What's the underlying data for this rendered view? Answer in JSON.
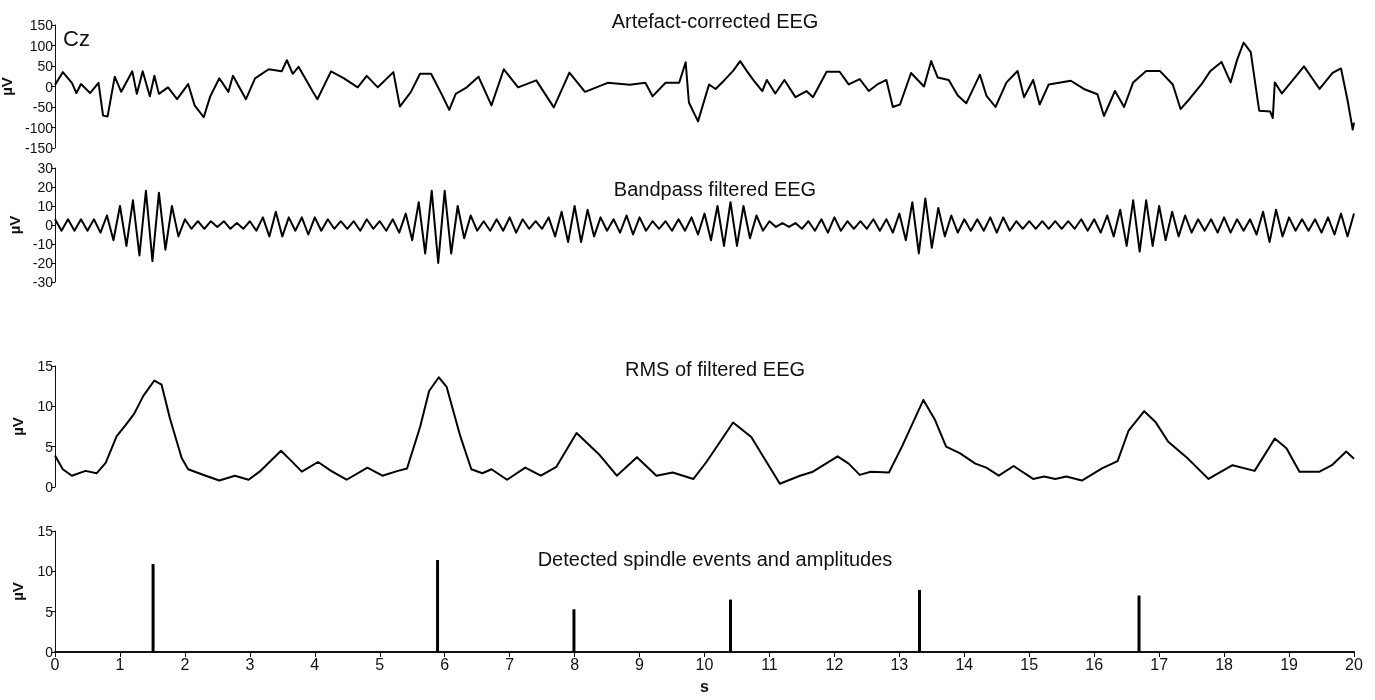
{
  "chart_data": [
    {
      "type": "line",
      "title": "Artefact-corrected EEG",
      "ylabel": "µV",
      "annotations": [
        "Cz"
      ],
      "xlim": [
        0,
        20
      ],
      "ylim": [
        -150,
        150
      ],
      "yticks": [
        -150,
        -100,
        -50,
        0,
        50,
        100,
        150
      ],
      "tick_labels": "y",
      "grid": false,
      "marker": "none",
      "line_style": "solid",
      "series": [
        {
          "color": "#000000",
          "x": [
            0,
            0.12,
            0.26,
            0.33,
            0.4,
            0.54,
            0.67,
            0.74,
            0.81,
            0.92,
            1.02,
            1.19,
            1.26,
            1.35,
            1.46,
            1.53,
            1.6,
            1.74,
            1.88,
            2.05,
            2.15,
            2.29,
            2.39,
            2.53,
            2.67,
            2.74,
            2.94,
            3.08,
            3.29,
            3.49,
            3.57,
            3.66,
            3.75,
            3.97,
            4.04,
            4.25,
            4.45,
            4.66,
            4.8,
            4.97,
            5.21,
            5.31,
            5.48,
            5.62,
            5.79,
            5.97,
            6.07,
            6.17,
            6.34,
            6.52,
            6.72,
            6.91,
            7.13,
            7.41,
            7.68,
            7.92,
            8.16,
            8.51,
            8.85,
            9.09,
            9.2,
            9.4,
            9.61,
            9.71,
            9.76,
            9.9,
            10.07,
            10.17,
            10.31,
            10.44,
            10.55,
            10.65,
            10.75,
            10.89,
            10.96,
            11.09,
            11.23,
            11.4,
            11.57,
            11.67,
            11.88,
            12.08,
            12.22,
            12.39,
            12.53,
            12.66,
            12.8,
            12.9,
            13.01,
            13.18,
            13.38,
            13.49,
            13.59,
            13.76,
            13.9,
            14.03,
            14.24,
            14.34,
            14.48,
            14.65,
            14.82,
            14.92,
            15.06,
            15.16,
            15.3,
            15.64,
            15.84,
            16.05,
            16.15,
            16.32,
            16.46,
            16.6,
            16.8,
            17.01,
            17.21,
            17.33,
            17.48,
            17.65,
            17.79,
            17.96,
            18.1,
            18.2,
            18.3,
            18.41,
            18.54,
            18.71,
            18.75,
            18.78,
            18.89,
            19.06,
            19.23,
            19.47,
            19.67,
            19.8,
            19.9,
            19.98,
            20
          ],
          "values": [
            4,
            35,
            9,
            -16,
            6,
            -16,
            9,
            -71,
            -73,
            24,
            -13,
            37,
            -18,
            37,
            -24,
            26,
            -18,
            -2,
            -31,
            6,
            -46,
            -75,
            -24,
            20,
            -13,
            26,
            -31,
            20,
            42,
            37,
            64,
            31,
            48,
            -13,
            -31,
            37,
            20,
            -2,
            26,
            -2,
            35,
            -49,
            -13,
            31,
            31,
            -24,
            -57,
            -18,
            -2,
            24,
            -46,
            42,
            -2,
            15,
            -51,
            34,
            -13,
            9,
            4,
            9,
            -24,
            9,
            9,
            59,
            -39,
            -85,
            5,
            -6,
            16,
            38,
            62,
            38,
            16,
            -11,
            16,
            -17,
            16,
            -26,
            -11,
            -26,
            36,
            36,
            5,
            18,
            -11,
            5,
            16,
            -50,
            -44,
            33,
            0,
            62,
            22,
            16,
            -22,
            -41,
            29,
            -22,
            -50,
            10,
            38,
            -26,
            16,
            -44,
            5,
            14,
            -6,
            -19,
            -72,
            -11,
            -50,
            10,
            38,
            38,
            5,
            -55,
            -28,
            5,
            38,
            60,
            10,
            65,
            107,
            84,
            -59,
            -61,
            -77,
            10,
            -17,
            16,
            49,
            -6,
            33,
            44,
            -33,
            -105,
            -88
          ]
        }
      ]
    },
    {
      "type": "line",
      "title": "Bandpass filtered EEG",
      "ylabel": "µV",
      "xlim": [
        0,
        20
      ],
      "ylim": [
        -30,
        30
      ],
      "yticks": [
        -30,
        -20,
        -10,
        0,
        10,
        20,
        30
      ],
      "tick_labels": "y",
      "grid": false,
      "marker": "none",
      "line_style": "solid",
      "series": [
        {
          "color": "#000000",
          "x": [
            0,
            0.1,
            0.2,
            0.3,
            0.4,
            0.5,
            0.6,
            0.7,
            0.8,
            0.9,
            1,
            1.1,
            1.2,
            1.3,
            1.4,
            1.5,
            1.6,
            1.7,
            1.8,
            1.9,
            2,
            2.1,
            2.2,
            2.3,
            2.4,
            2.5,
            2.6,
            2.7,
            2.8,
            2.9,
            3,
            3.1,
            3.2,
            3.3,
            3.4,
            3.5,
            3.6,
            3.7,
            3.8,
            3.9,
            4,
            4.1,
            4.2,
            4.3,
            4.4,
            4.5,
            4.6,
            4.7,
            4.8,
            4.9,
            5,
            5.1,
            5.2,
            5.3,
            5.4,
            5.5,
            5.6,
            5.7,
            5.8,
            5.9,
            6,
            6.1,
            6.2,
            6.3,
            6.4,
            6.5,
            6.6,
            6.7,
            6.8,
            6.9,
            7,
            7.1,
            7.2,
            7.3,
            7.4,
            7.5,
            7.6,
            7.7,
            7.8,
            7.9,
            8,
            8.1,
            8.2,
            8.3,
            8.4,
            8.5,
            8.6,
            8.7,
            8.8,
            8.9,
            9,
            9.1,
            9.2,
            9.3,
            9.4,
            9.5,
            9.6,
            9.7,
            9.8,
            9.9,
            10,
            10.1,
            10.2,
            10.3,
            10.4,
            10.5,
            10.6,
            10.7,
            10.8,
            10.9,
            11,
            11.1,
            11.2,
            11.3,
            11.4,
            11.5,
            11.6,
            11.7,
            11.8,
            11.9,
            12,
            12.1,
            12.2,
            12.3,
            12.4,
            12.5,
            12.6,
            12.7,
            12.8,
            12.9,
            13,
            13.1,
            13.2,
            13.3,
            13.4,
            13.5,
            13.6,
            13.7,
            13.8,
            13.9,
            14,
            14.1,
            14.2,
            14.3,
            14.4,
            14.5,
            14.6,
            14.7,
            14.8,
            14.9,
            15,
            15.1,
            15.2,
            15.3,
            15.4,
            15.5,
            15.6,
            15.7,
            15.8,
            15.9,
            16,
            16.1,
            16.2,
            16.3,
            16.4,
            16.5,
            16.6,
            16.7,
            16.8,
            16.9,
            17,
            17.1,
            17.2,
            17.3,
            17.4,
            17.5,
            17.6,
            17.7,
            17.8,
            17.9,
            18,
            18.1,
            18.2,
            18.3,
            18.4,
            18.5,
            18.6,
            18.7,
            18.8,
            18.9,
            19,
            19.1,
            19.2,
            19.3,
            19.4,
            19.5,
            19.6,
            19.7,
            19.8,
            19.9,
            20
          ],
          "values": [
            3,
            -3,
            3,
            -3,
            3,
            -3,
            3,
            -4,
            5,
            -8,
            10,
            -11,
            13,
            -16,
            18,
            -19,
            17,
            -13,
            10,
            -6,
            3,
            -2,
            2,
            -2,
            2,
            -1,
            2,
            -2,
            1,
            -2,
            2,
            -3,
            4,
            -6,
            7,
            -6,
            4,
            -3,
            4,
            -5,
            4,
            -3,
            3,
            -2,
            2,
            -2,
            2,
            -3,
            3,
            -2,
            2,
            -3,
            3,
            -4,
            6,
            -8,
            12,
            -15,
            18,
            -20,
            18,
            -15,
            10,
            -7,
            5,
            -3,
            2,
            -3,
            3,
            -3,
            4,
            -4,
            3,
            -2,
            2,
            -2,
            4,
            -6,
            7,
            -9,
            10,
            -9,
            8,
            -6,
            4,
            -3,
            3,
            -4,
            5,
            -5,
            4,
            -3,
            2,
            -2,
            2,
            -3,
            3,
            -3,
            4,
            -5,
            6,
            -8,
            10,
            -11,
            12,
            -11,
            10,
            -7,
            5,
            -3,
            2,
            -1,
            1,
            -1,
            1,
            -2,
            2,
            -3,
            3,
            -4,
            4,
            -3,
            2,
            -2,
            2,
            -2,
            3,
            -3,
            3,
            -4,
            6,
            -8,
            12,
            -15,
            14,
            -12,
            9,
            -6,
            5,
            -4,
            3,
            -3,
            3,
            -3,
            4,
            -4,
            4,
            -3,
            2,
            -2,
            2,
            -2,
            2,
            -2,
            2,
            -2,
            2,
            -2,
            3,
            -3,
            3,
            -4,
            5,
            -6,
            8,
            -11,
            13,
            -14,
            13,
            -11,
            10,
            -8,
            7,
            -6,
            5,
            -4,
            3,
            -3,
            3,
            -4,
            4,
            -4,
            3,
            -3,
            3,
            -5,
            7,
            -9,
            8,
            -6,
            4,
            -3,
            3,
            -3,
            3,
            -4,
            4,
            -5,
            6,
            -6,
            6
          ]
        }
      ]
    },
    {
      "type": "line",
      "title": "RMS of filtered EEG",
      "ylabel": "µV",
      "xlim": [
        0,
        20
      ],
      "ylim": [
        0,
        15
      ],
      "yticks": [
        0,
        5,
        10,
        15
      ],
      "tick_labels": "y",
      "grid": false,
      "marker": "none",
      "line_style": "solid",
      "series": [
        {
          "color": "#000000",
          "x": [
            0,
            0.12,
            0.26,
            0.47,
            0.64,
            0.78,
            0.95,
            1.09,
            1.22,
            1.36,
            1.53,
            1.64,
            1.77,
            1.95,
            2.05,
            2.32,
            2.53,
            2.77,
            2.98,
            3.15,
            3.48,
            3.63,
            3.8,
            4.05,
            4.25,
            4.49,
            4.81,
            5.04,
            5.28,
            5.42,
            5.62,
            5.76,
            5.91,
            6.03,
            6.24,
            6.41,
            6.58,
            6.72,
            6.96,
            7.24,
            7.48,
            7.72,
            8.03,
            8.37,
            8.65,
            8.96,
            9.26,
            9.51,
            9.83,
            10.03,
            10.44,
            10.72,
            11.16,
            11.47,
            11.67,
            12.05,
            12.22,
            12.39,
            12.56,
            12.84,
            13.04,
            13.37,
            13.55,
            13.72,
            13.93,
            14.17,
            14.34,
            14.53,
            14.76,
            15.06,
            15.23,
            15.4,
            15.57,
            15.81,
            16.12,
            16.36,
            16.53,
            16.77,
            16.94,
            17.14,
            17.42,
            17.76,
            18.13,
            18.47,
            18.78,
            18.96,
            19.16,
            19.47,
            19.66,
            19.88,
            20
          ],
          "values": [
            3.9,
            2.2,
            1.4,
            2,
            1.7,
            3,
            6.3,
            7.7,
            9.1,
            11.3,
            13.2,
            12.7,
            8.5,
            3.6,
            2.2,
            1.4,
            0.8,
            1.4,
            0.9,
            1.9,
            4.5,
            3.3,
            1.9,
            3.1,
            2,
            0.9,
            2.4,
            1.4,
            2,
            2.3,
            7.4,
            11.9,
            13.6,
            12.4,
            6.3,
            2.2,
            1.7,
            2.2,
            0.9,
            2.4,
            1.4,
            2.5,
            6.7,
            4.1,
            1.4,
            3.7,
            1.4,
            1.8,
            1,
            3.1,
            8,
            6.2,
            0.4,
            1.4,
            1.9,
            3.8,
            2.9,
            1.5,
            1.9,
            1.8,
            5,
            10.8,
            8.3,
            5,
            4.2,
            2.9,
            2.4,
            1.4,
            2.6,
            1,
            1.3,
            1,
            1.3,
            0.8,
            2.3,
            3.2,
            7,
            9.4,
            8.1,
            5.6,
            3.7,
            1,
            2.7,
            2,
            6,
            4.8,
            1.9,
            1.9,
            2.7,
            4.4,
            3.5
          ]
        }
      ]
    },
    {
      "type": "bar",
      "title": "Detected spindle events and amplitudes",
      "xlabel": "s",
      "ylabel": "µV",
      "xlim": [
        0,
        20
      ],
      "xticks": [
        0,
        1,
        2,
        3,
        4,
        5,
        6,
        7,
        8,
        9,
        10,
        11,
        12,
        13,
        14,
        15,
        16,
        17,
        18,
        19,
        20
      ],
      "ylim": [
        0,
        15
      ],
      "yticks": [
        0,
        5,
        10,
        15
      ],
      "grid": false,
      "series": [
        {
          "color": "#000000",
          "x": [
            1.51,
            5.89,
            7.99,
            10.4,
            13.31,
            16.69
          ],
          "values": [
            10.9,
            11.4,
            5.3,
            6.5,
            7.7,
            7
          ]
        }
      ]
    }
  ]
}
